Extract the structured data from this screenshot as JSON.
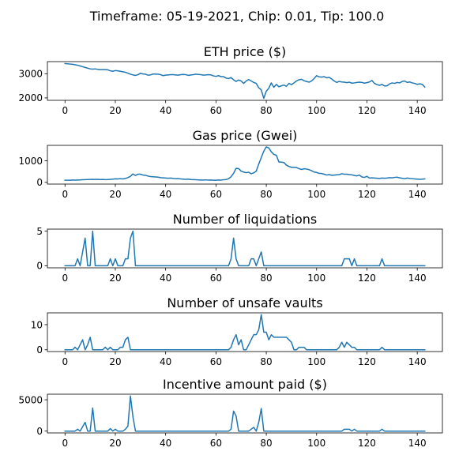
{
  "figure": {
    "title": "Timeframe: 05-19-2021, Chip: 0.01, Tip: 100.0",
    "line_color": "#1f77b4"
  },
  "chart_data": [
    {
      "type": "line",
      "title": "ETH price ($)",
      "xlim": [
        -7,
        150
      ],
      "ylim": [
        1900,
        3500
      ],
      "xticks": [
        0,
        20,
        40,
        60,
        80,
        100,
        120,
        140
      ],
      "yticks": [
        2000,
        3000
      ],
      "x": [
        0,
        1,
        2,
        3,
        4,
        5,
        6,
        7,
        8,
        9,
        10,
        11,
        12,
        13,
        14,
        15,
        16,
        17,
        18,
        19,
        20,
        21,
        22,
        23,
        24,
        25,
        26,
        27,
        28,
        29,
        30,
        31,
        32,
        33,
        34,
        35,
        36,
        37,
        38,
        39,
        40,
        41,
        42,
        43,
        44,
        45,
        46,
        47,
        48,
        49,
        50,
        51,
        52,
        53,
        54,
        55,
        56,
        57,
        58,
        59,
        60,
        61,
        62,
        63,
        64,
        65,
        66,
        67,
        68,
        69,
        70,
        71,
        72,
        73,
        74,
        75,
        76,
        77,
        78,
        79,
        80,
        81,
        82,
        83,
        84,
        85,
        86,
        87,
        88,
        89,
        90,
        91,
        92,
        93,
        94,
        95,
        96,
        97,
        98,
        99,
        100,
        101,
        102,
        103,
        104,
        105,
        106,
        107,
        108,
        109,
        110,
        111,
        112,
        113,
        114,
        115,
        116,
        117,
        118,
        119,
        120,
        121,
        122,
        123,
        124,
        125,
        126,
        127,
        128,
        129,
        130,
        131,
        132,
        133,
        134,
        135,
        136,
        137,
        138,
        139,
        140,
        141,
        142,
        143
      ],
      "values": [
        3420,
        3410,
        3400,
        3390,
        3370,
        3350,
        3320,
        3290,
        3260,
        3230,
        3200,
        3190,
        3200,
        3180,
        3170,
        3170,
        3170,
        3160,
        3120,
        3100,
        3130,
        3120,
        3100,
        3080,
        3060,
        3020,
        2980,
        2950,
        2930,
        2960,
        3020,
        2990,
        2980,
        2940,
        2950,
        2990,
        2980,
        2980,
        2960,
        2920,
        2940,
        2950,
        2960,
        2960,
        2950,
        2940,
        2960,
        2970,
        2960,
        2930,
        2950,
        2960,
        2980,
        2970,
        2960,
        2940,
        2950,
        2960,
        2950,
        2910,
        2890,
        2920,
        2880,
        2880,
        2820,
        2800,
        2840,
        2750,
        2680,
        2740,
        2700,
        2600,
        2700,
        2760,
        2700,
        2640,
        2600,
        2420,
        2330,
        1980,
        2280,
        2400,
        2620,
        2440,
        2560,
        2460,
        2500,
        2530,
        2480,
        2600,
        2550,
        2620,
        2700,
        2750,
        2770,
        2710,
        2680,
        2650,
        2700,
        2800,
        2920,
        2870,
        2860,
        2880,
        2830,
        2850,
        2780,
        2700,
        2640,
        2680,
        2660,
        2650,
        2630,
        2650,
        2610,
        2620,
        2640,
        2650,
        2640,
        2610,
        2630,
        2660,
        2720,
        2600,
        2550,
        2520,
        2560,
        2490,
        2500,
        2580,
        2620,
        2600,
        2640,
        2620,
        2680,
        2700,
        2640,
        2660,
        2620,
        2600,
        2560,
        2580,
        2560,
        2450
      ]
    },
    {
      "type": "line",
      "title": "Gas price (Gwei)",
      "xlim": [
        -7,
        150
      ],
      "ylim": [
        -80,
        1720
      ],
      "xticks": [
        0,
        20,
        40,
        60,
        80,
        100,
        120,
        140
      ],
      "yticks": [
        0,
        1000
      ],
      "x": [
        0,
        1,
        2,
        3,
        4,
        5,
        6,
        7,
        8,
        9,
        10,
        11,
        12,
        13,
        14,
        15,
        16,
        17,
        18,
        19,
        20,
        21,
        22,
        23,
        24,
        25,
        26,
        27,
        28,
        29,
        30,
        31,
        32,
        33,
        34,
        35,
        36,
        37,
        38,
        39,
        40,
        41,
        42,
        43,
        44,
        45,
        46,
        47,
        48,
        49,
        50,
        51,
        52,
        53,
        54,
        55,
        56,
        57,
        58,
        59,
        60,
        61,
        62,
        63,
        64,
        65,
        66,
        67,
        68,
        69,
        70,
        71,
        72,
        73,
        74,
        75,
        76,
        77,
        78,
        79,
        80,
        81,
        82,
        83,
        84,
        85,
        86,
        87,
        88,
        89,
        90,
        91,
        92,
        93,
        94,
        95,
        96,
        97,
        98,
        99,
        100,
        101,
        102,
        103,
        104,
        105,
        106,
        107,
        108,
        109,
        110,
        111,
        112,
        113,
        114,
        115,
        116,
        117,
        118,
        119,
        120,
        121,
        122,
        123,
        124,
        125,
        126,
        127,
        128,
        129,
        130,
        131,
        132,
        133,
        134,
        135,
        136,
        137,
        138,
        139,
        140,
        141,
        142,
        143
      ],
      "values": [
        100,
        100,
        100,
        110,
        105,
        110,
        115,
        120,
        125,
        130,
        135,
        140,
        135,
        140,
        130,
        135,
        125,
        130,
        140,
        150,
        165,
        160,
        170,
        160,
        180,
        220,
        280,
        390,
        320,
        380,
        380,
        340,
        330,
        290,
        270,
        260,
        250,
        240,
        220,
        210,
        200,
        190,
        200,
        180,
        170,
        175,
        160,
        150,
        140,
        150,
        130,
        125,
        120,
        115,
        110,
        110,
        115,
        105,
        110,
        100,
        100,
        110,
        105,
        120,
        130,
        170,
        260,
        420,
        650,
        640,
        520,
        480,
        450,
        470,
        400,
        440,
        520,
        850,
        1150,
        1450,
        1650,
        1600,
        1420,
        1300,
        1260,
        950,
        940,
        920,
        800,
        740,
        700,
        700,
        690,
        640,
        600,
        630,
        620,
        590,
        540,
        480,
        460,
        420,
        410,
        380,
        340,
        360,
        330,
        340,
        350,
        360,
        400,
        380,
        380,
        360,
        350,
        320,
        300,
        340,
        250,
        230,
        280,
        200,
        210,
        200,
        190,
        180,
        200,
        190,
        200,
        220,
        210,
        230,
        240,
        210,
        190,
        170,
        200,
        180,
        170,
        160,
        150,
        140,
        150,
        160
      ]
    },
    {
      "type": "line",
      "title": "Number of liquidations",
      "xlim": [
        -7,
        150
      ],
      "ylim": [
        -0.3,
        5.3
      ],
      "xticks": [
        0,
        20,
        40,
        60,
        80,
        100,
        120,
        140
      ],
      "yticks": [
        0,
        5
      ],
      "x": [
        0,
        1,
        2,
        3,
        4,
        5,
        6,
        7,
        8,
        9,
        10,
        11,
        12,
        13,
        14,
        15,
        16,
        17,
        18,
        19,
        20,
        21,
        22,
        23,
        24,
        25,
        26,
        27,
        28,
        29,
        30,
        31,
        32,
        33,
        34,
        35,
        36,
        37,
        38,
        39,
        40,
        41,
        42,
        43,
        44,
        45,
        46,
        47,
        48,
        49,
        50,
        51,
        52,
        53,
        54,
        55,
        56,
        57,
        58,
        59,
        60,
        61,
        62,
        63,
        64,
        65,
        66,
        67,
        68,
        69,
        70,
        71,
        72,
        73,
        74,
        75,
        76,
        77,
        78,
        79,
        80,
        81,
        82,
        83,
        84,
        85,
        86,
        87,
        88,
        89,
        90,
        91,
        92,
        93,
        94,
        95,
        96,
        97,
        98,
        99,
        100,
        101,
        102,
        103,
        104,
        105,
        106,
        107,
        108,
        109,
        110,
        111,
        112,
        113,
        114,
        115,
        116,
        117,
        118,
        119,
        120,
        121,
        122,
        123,
        124,
        125,
        126,
        127,
        128,
        129,
        130,
        131,
        132,
        133,
        134,
        135,
        136,
        137,
        138,
        139,
        140,
        141,
        142,
        143
      ],
      "values": [
        0,
        0,
        0,
        0,
        0,
        1,
        0,
        2,
        4,
        0,
        0,
        5,
        0,
        0,
        0,
        0,
        0,
        0,
        1,
        0,
        1,
        0,
        0,
        0,
        1,
        1,
        4,
        5,
        0,
        0,
        0,
        0,
        0,
        0,
        0,
        0,
        0,
        0,
        0,
        0,
        0,
        0,
        0,
        0,
        0,
        0,
        0,
        0,
        0,
        0,
        0,
        0,
        0,
        0,
        0,
        0,
        0,
        0,
        0,
        0,
        0,
        0,
        0,
        0,
        0,
        0,
        1,
        4,
        1,
        0,
        0,
        0,
        0,
        0,
        1,
        1,
        0,
        1,
        2,
        0,
        0,
        0,
        0,
        0,
        0,
        0,
        0,
        0,
        0,
        0,
        0,
        0,
        0,
        0,
        0,
        0,
        0,
        0,
        0,
        0,
        0,
        0,
        0,
        0,
        0,
        0,
        0,
        0,
        0,
        0,
        0,
        1,
        1,
        1,
        0,
        1,
        0,
        0,
        0,
        0,
        0,
        0,
        0,
        0,
        0,
        0,
        1,
        0,
        0,
        0,
        0,
        0,
        0,
        0,
        0,
        0,
        0,
        0,
        0,
        0,
        0,
        0,
        0,
        0
      ]
    },
    {
      "type": "line",
      "title": "Number of unsafe vaults",
      "xlim": [
        -7,
        150
      ],
      "ylim": [
        -0.7,
        14.7
      ],
      "xticks": [
        0,
        20,
        40,
        60,
        80,
        100,
        120,
        140
      ],
      "yticks": [
        0,
        10
      ],
      "x": [
        0,
        1,
        2,
        3,
        4,
        5,
        6,
        7,
        8,
        9,
        10,
        11,
        12,
        13,
        14,
        15,
        16,
        17,
        18,
        19,
        20,
        21,
        22,
        23,
        24,
        25,
        26,
        27,
        28,
        29,
        30,
        31,
        32,
        33,
        34,
        35,
        36,
        37,
        38,
        39,
        40,
        41,
        42,
        43,
        44,
        45,
        46,
        47,
        48,
        49,
        50,
        51,
        52,
        53,
        54,
        55,
        56,
        57,
        58,
        59,
        60,
        61,
        62,
        63,
        64,
        65,
        66,
        67,
        68,
        69,
        70,
        71,
        72,
        73,
        74,
        75,
        76,
        77,
        78,
        79,
        80,
        81,
        82,
        83,
        84,
        85,
        86,
        87,
        88,
        89,
        90,
        91,
        92,
        93,
        94,
        95,
        96,
        97,
        98,
        99,
        100,
        101,
        102,
        103,
        104,
        105,
        106,
        107,
        108,
        109,
        110,
        111,
        112,
        113,
        114,
        115,
        116,
        117,
        118,
        119,
        120,
        121,
        122,
        123,
        124,
        125,
        126,
        127,
        128,
        129,
        130,
        131,
        132,
        133,
        134,
        135,
        136,
        137,
        138,
        139,
        140,
        141,
        142,
        143
      ],
      "values": [
        0,
        0,
        0,
        0,
        1,
        0,
        2,
        4,
        0,
        2,
        5,
        0,
        0,
        0,
        0,
        0,
        1,
        0,
        1,
        0,
        0,
        0,
        1,
        1,
        4,
        5,
        0,
        0,
        0,
        0,
        0,
        0,
        0,
        0,
        0,
        0,
        0,
        0,
        0,
        0,
        0,
        0,
        0,
        0,
        0,
        0,
        0,
        0,
        0,
        0,
        0,
        0,
        0,
        0,
        0,
        0,
        0,
        0,
        0,
        0,
        0,
        0,
        0,
        0,
        0,
        0,
        1,
        4,
        6,
        2,
        4,
        0,
        0,
        2,
        4,
        6,
        6,
        8,
        14,
        7,
        7,
        4,
        6,
        5,
        5,
        5,
        5,
        5,
        5,
        4,
        3,
        0,
        0,
        1,
        1,
        1,
        0,
        0,
        0,
        0,
        0,
        0,
        0,
        0,
        0,
        0,
        0,
        0,
        0,
        1,
        3,
        1,
        3,
        2,
        1,
        1,
        0,
        0,
        0,
        0,
        0,
        0,
        0,
        0,
        0,
        0,
        1,
        0,
        0,
        0,
        0,
        0,
        0,
        0,
        0,
        0,
        0,
        0,
        0,
        0,
        0,
        0,
        0,
        0
      ]
    },
    {
      "type": "line",
      "title": "Incentive amount paid ($)",
      "xlim": [
        -7,
        150
      ],
      "ylim": [
        -290,
        5890
      ],
      "xticks": [
        0,
        20,
        40,
        60,
        80,
        100,
        120,
        140
      ],
      "yticks": [
        0,
        5000
      ],
      "x": [
        0,
        1,
        2,
        3,
        4,
        5,
        6,
        7,
        8,
        9,
        10,
        11,
        12,
        13,
        14,
        15,
        16,
        17,
        18,
        19,
        20,
        21,
        22,
        23,
        24,
        25,
        26,
        27,
        28,
        29,
        30,
        31,
        32,
        33,
        34,
        35,
        36,
        37,
        38,
        39,
        40,
        41,
        42,
        43,
        44,
        45,
        46,
        47,
        48,
        49,
        50,
        51,
        52,
        53,
        54,
        55,
        56,
        57,
        58,
        59,
        60,
        61,
        62,
        63,
        64,
        65,
        66,
        67,
        68,
        69,
        70,
        71,
        72,
        73,
        74,
        75,
        76,
        77,
        78,
        79,
        80,
        81,
        82,
        83,
        84,
        85,
        86,
        87,
        88,
        89,
        90,
        91,
        92,
        93,
        94,
        95,
        96,
        97,
        98,
        99,
        100,
        101,
        102,
        103,
        104,
        105,
        106,
        107,
        108,
        109,
        110,
        111,
        112,
        113,
        114,
        115,
        116,
        117,
        118,
        119,
        120,
        121,
        122,
        123,
        124,
        125,
        126,
        127,
        128,
        129,
        130,
        131,
        132,
        133,
        134,
        135,
        136,
        137,
        138,
        139,
        140,
        141,
        142,
        143
      ],
      "values": [
        0,
        0,
        0,
        0,
        0,
        300,
        0,
        700,
        1400,
        0,
        0,
        3700,
        0,
        0,
        0,
        0,
        0,
        0,
        400,
        0,
        300,
        0,
        0,
        0,
        300,
        800,
        5600,
        2300,
        0,
        0,
        0,
        0,
        0,
        0,
        0,
        0,
        0,
        0,
        0,
        0,
        0,
        0,
        0,
        0,
        0,
        0,
        0,
        0,
        0,
        0,
        0,
        0,
        0,
        0,
        0,
        0,
        0,
        0,
        0,
        0,
        0,
        0,
        0,
        0,
        0,
        0,
        300,
        3200,
        2400,
        0,
        0,
        0,
        0,
        0,
        300,
        600,
        0,
        1400,
        3600,
        0,
        0,
        0,
        0,
        0,
        0,
        0,
        0,
        0,
        0,
        0,
        0,
        0,
        0,
        0,
        0,
        0,
        0,
        0,
        0,
        0,
        0,
        0,
        0,
        0,
        0,
        0,
        0,
        0,
        0,
        0,
        0,
        300,
        300,
        300,
        0,
        300,
        0,
        0,
        0,
        0,
        0,
        0,
        0,
        0,
        0,
        0,
        300,
        0,
        0,
        0,
        0,
        0,
        0,
        0,
        0,
        0,
        0,
        0,
        0,
        0,
        0,
        0,
        0,
        0
      ]
    }
  ]
}
